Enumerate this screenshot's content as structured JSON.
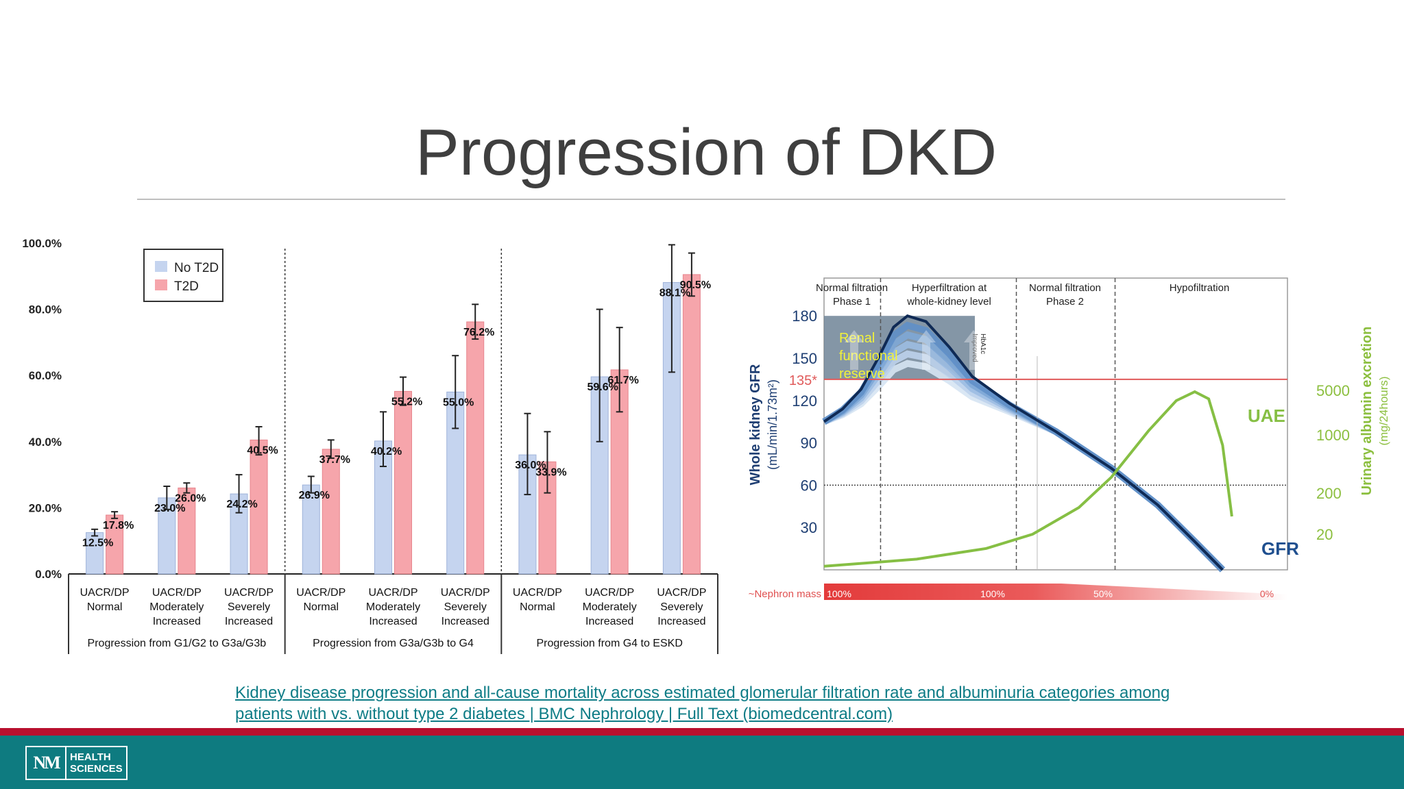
{
  "slide": {
    "title": "Progression of DKD",
    "source_link": {
      "line1": "Kidney disease progression and all-cause mortality across estimated glomerular filtration rate and albuminuria categories among",
      "line2": "patients with vs. without type 2 diabetes | BMC Nephrology | Full Text (biomedcentral.com)"
    },
    "logo": {
      "mark": "NM",
      "line1": "HEALTH",
      "line2": "SCIENCES"
    },
    "colors": {
      "teal": "#0e7b80",
      "red": "#b8102e",
      "no_t2d": "#c5d4ef",
      "t2d": "#f6a5ab"
    }
  },
  "chart_data": [
    {
      "type": "bar",
      "ylim": [
        0,
        100
      ],
      "yticks": [
        "0.0%",
        "20.0%",
        "40.0%",
        "60.0%",
        "80.0%",
        "100.0%"
      ],
      "legend": [
        "No T2D",
        "T2D"
      ],
      "legend_position": "top-left",
      "categories": [
        [
          "UACR/DP",
          "Normal"
        ],
        [
          "UACR/DP",
          "Moderately",
          "Increased"
        ],
        [
          "UACR/DP",
          "Severely",
          "Increased"
        ],
        [
          "UACR/DP",
          "Normal"
        ],
        [
          "UACR/DP",
          "Moderately",
          "Increased"
        ],
        [
          "UACR/DP",
          "Severely",
          "Increased"
        ],
        [
          "UACR/DP",
          "Normal"
        ],
        [
          "UACR/DP",
          "Moderately",
          "Increased"
        ],
        [
          "UACR/DP",
          "Severely",
          "Increased"
        ]
      ],
      "groups": [
        "Progression from G1/G2 to G3a/G3b",
        "Progression from G3a/G3b to G4",
        "Progression from G4 to ESKD"
      ],
      "series": [
        {
          "name": "No T2D",
          "values": [
            12.5,
            23.0,
            24.2,
            26.9,
            40.2,
            55.0,
            36.0,
            59.6,
            88.1
          ],
          "labels": [
            "12.5%",
            "23.0%",
            "24.2%",
            "26.9%",
            "40.2%",
            "55.0%",
            "36.0%",
            "59.6%",
            "88.1%"
          ],
          "err_low": [
            11.5,
            19.5,
            18.5,
            24.5,
            32.5,
            44.0,
            24.0,
            40.0,
            61.0
          ],
          "err_high": [
            13.5,
            26.5,
            30.0,
            29.5,
            49.0,
            66.0,
            48.5,
            80.0,
            99.5
          ]
        },
        {
          "name": "T2D",
          "values": [
            17.8,
            26.0,
            40.5,
            37.7,
            55.2,
            76.2,
            33.9,
            61.7,
            90.5
          ],
          "labels": [
            "17.8%",
            "26.0%",
            "40.5%",
            "37.7%",
            "55.2%",
            "76.2%",
            "33.9%",
            "61.7%",
            "90.5%"
          ],
          "err_low": [
            16.8,
            24.5,
            36.0,
            35.0,
            51.0,
            71.0,
            24.5,
            49.0,
            84.0
          ],
          "err_high": [
            18.8,
            27.5,
            44.5,
            40.5,
            59.5,
            81.5,
            43.0,
            74.5,
            97.0
          ]
        }
      ]
    },
    {
      "type": "line",
      "phases": [
        "Normal filtration\nPhase 1",
        "Hyperfiltration at\nwhole-kidney level",
        "Normal filtration\nPhase 2",
        "Hypofiltration"
      ],
      "ylabel": "Whole kidney GFR\n(mL/min/1.73m²)",
      "yticks": [
        30,
        60,
        90,
        120,
        150,
        180
      ],
      "reference_line": {
        "value": 135,
        "label": "135*"
      },
      "y2label": "Urinary albumin excretion\n(mg/24hours)",
      "y2ticks": [
        "20",
        "200",
        "1000",
        "5000"
      ],
      "annotations": {
        "reserve": [
          "Renal",
          "functional",
          "reserve"
        ],
        "hba1c": [
          "Improved",
          "HbA1c"
        ]
      },
      "series": [
        {
          "name": "GFR",
          "points": [
            [
              0,
              105
            ],
            [
              4,
              114
            ],
            [
              8,
              128
            ],
            [
              12,
              152
            ],
            [
              15,
              172
            ],
            [
              18,
              180
            ],
            [
              22,
              176
            ],
            [
              27,
              158
            ],
            [
              32,
              137
            ],
            [
              40,
              118
            ],
            [
              50,
              98
            ],
            [
              62,
              72
            ],
            [
              72,
              46
            ],
            [
              80,
              20
            ],
            [
              86,
              0
            ]
          ]
        },
        {
          "name": "UAE",
          "points": [
            [
              0,
              2
            ],
            [
              20,
              6
            ],
            [
              35,
              12
            ],
            [
              45,
              20
            ],
            [
              55,
              35
            ],
            [
              62,
              52
            ],
            [
              70,
              78
            ],
            [
              76,
              95
            ],
            [
              80,
              100
            ],
            [
              83,
              96
            ],
            [
              86,
              70
            ],
            [
              88,
              30
            ]
          ]
        }
      ],
      "nephron_mass": {
        "label": "~Nephron mass",
        "ticks": [
          "100%",
          "100%",
          "50%",
          "0%"
        ]
      }
    }
  ]
}
